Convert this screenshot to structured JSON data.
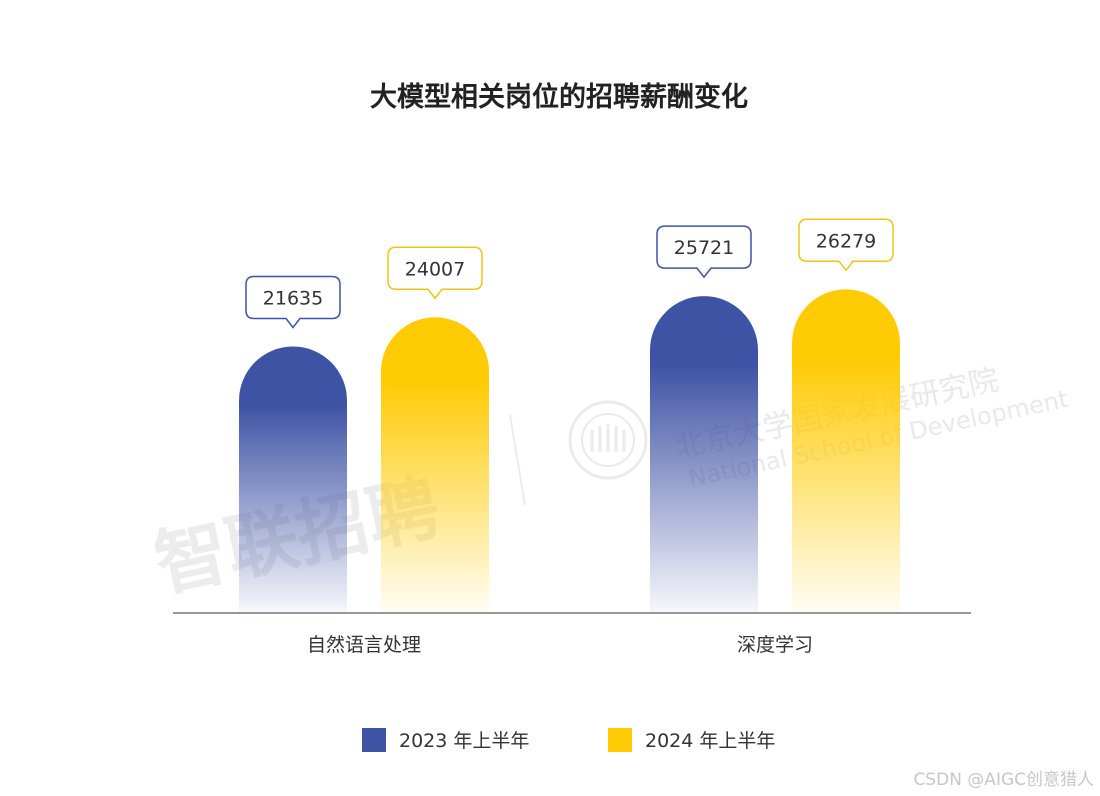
{
  "chart_data": {
    "type": "bar",
    "title": "大模型相关岗位的招聘薪酬变化",
    "categories": [
      "自然语言处理",
      "深度学习"
    ],
    "series": [
      {
        "name": "2023 年上半年",
        "values": [
          21635,
          25721
        ],
        "color": "#3f53a5"
      },
      {
        "name": "2024 年上半年",
        "values": [
          24007,
          26279
        ],
        "color": "#ffcb05"
      }
    ],
    "ylim": [
      0,
      28500
    ],
    "grid": false,
    "legend_position": "bottom-center"
  },
  "watermarks": {
    "zhaopin": "智联招聘",
    "nsd_cn": "北京大学国家发展研究院",
    "nsd_en": "National School of Development"
  },
  "credit": "CSDN @AIGC创意猎人"
}
